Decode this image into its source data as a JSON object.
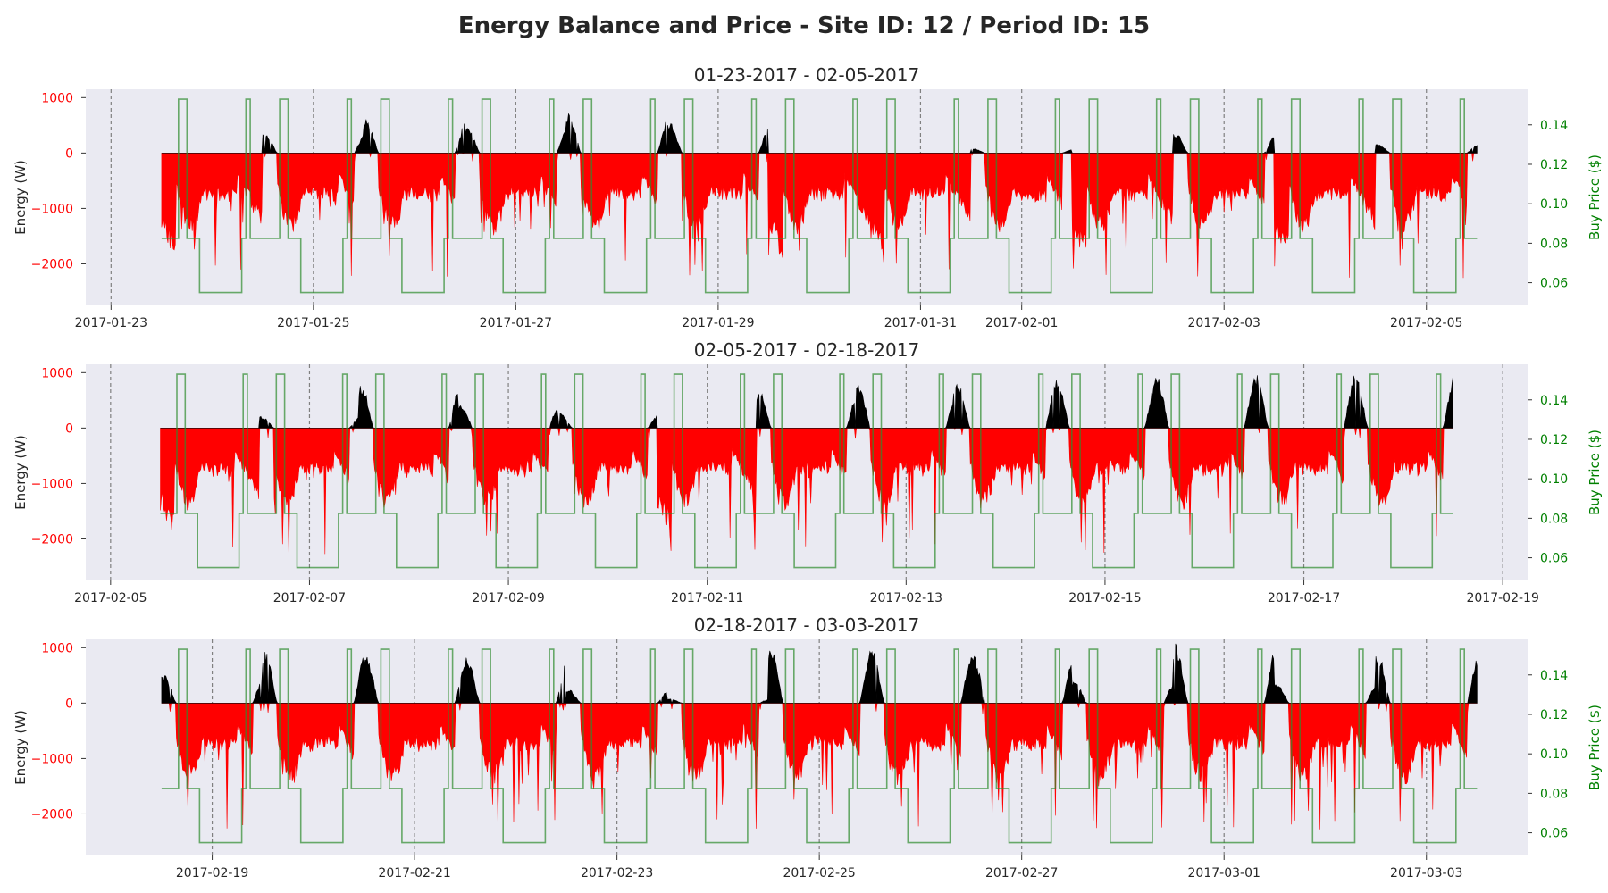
{
  "title": "Energy Balance and Price - Site ID: 12 / Period ID: 15",
  "colors": {
    "background": "#ffffff",
    "plot_bg": "#eaeaf2",
    "energy_neg": "#ff0000",
    "energy_pos": "#000000",
    "price_line": "#2e8b2e",
    "left_tick": "#ff0000",
    "right_tick": "#008000",
    "day_line": "#808080"
  },
  "chart_data": [
    {
      "type": "area",
      "title": "01-23-2017 - 02-05-2017",
      "ylabel": "Energy (W)",
      "y2label": "Buy Price ($)",
      "ylim": [
        -2750,
        1150
      ],
      "y2lim": [
        0.0485,
        0.158
      ],
      "xlim": [
        "2017-01-22 18:00",
        "2017-02-06 00:00"
      ],
      "data_start": "2017-01-23 12:00",
      "data_end": "2017-02-05 12:00",
      "yticks": [
        1000,
        0,
        -1000,
        -2000
      ],
      "y2ticks": [
        0.14,
        0.12,
        0.1,
        0.08,
        0.06
      ],
      "xticks": [
        "2017-01-23",
        "2017-01-25",
        "2017-01-27",
        "2017-01-29",
        "2017-01-31",
        "2017-02-01",
        "2017-02-03",
        "2017-02-05"
      ],
      "day_lines": [
        "2017-01-23",
        "2017-01-25",
        "2017-01-27",
        "2017-01-29",
        "2017-01-31",
        "2017-02-01",
        "2017-02-03",
        "2017-02-05"
      ],
      "series": [
        {
          "name": "Energy (W)",
          "daily_pattern": "solar-midday-surplus, evening/night deficit",
          "typical_min": -2100,
          "typical_max": 730
        },
        {
          "name": "Buy Price ($)",
          "levels": [
            0.055,
            0.0825,
            0.153
          ],
          "pattern": "off-peak night, mid-peak day, on-peak pulses morning/evening"
        }
      ],
      "peaks": [
        0,
        350,
        620,
        480,
        720,
        560,
        0,
        0,
        80,
        0,
        360,
        0,
        160
      ]
    },
    {
      "type": "area",
      "title": "02-05-2017 - 02-18-2017",
      "ylabel": "Energy (W)",
      "y2label": "Buy Price ($)",
      "ylim": [
        -2750,
        1150
      ],
      "y2lim": [
        0.0485,
        0.158
      ],
      "xlim": [
        "2017-02-04 18:00",
        "2017-02-19 06:00"
      ],
      "data_start": "2017-02-05 12:00",
      "data_end": "2017-02-18 12:00",
      "yticks": [
        1000,
        0,
        -1000,
        -2000
      ],
      "y2ticks": [
        0.14,
        0.12,
        0.1,
        0.08,
        0.06
      ],
      "xticks": [
        "2017-02-05",
        "2017-02-07",
        "2017-02-09",
        "2017-02-11",
        "2017-02-13",
        "2017-02-15",
        "2017-02-17",
        "2017-02-19"
      ],
      "day_lines": [
        "2017-02-05",
        "2017-02-07",
        "2017-02-09",
        "2017-02-11",
        "2017-02-13",
        "2017-02-15",
        "2017-02-17",
        "2017-02-19"
      ],
      "series": [
        {
          "name": "Energy (W)",
          "typical_min": -2250,
          "typical_max": 1000
        },
        {
          "name": "Buy Price ($)",
          "levels": [
            0.055,
            0.0825,
            0.153
          ]
        }
      ],
      "peaks": [
        0,
        220,
        820,
        420,
        260,
        0,
        700,
        780,
        850,
        930,
        980,
        1000,
        1000
      ]
    },
    {
      "type": "area",
      "title": "02-18-2017 - 03-03-2017",
      "ylabel": "Energy (W)",
      "y2label": "Buy Price ($)",
      "ylim": [
        -2750,
        1150
      ],
      "y2lim": [
        0.0485,
        0.158
      ],
      "xlim": [
        "2017-02-17 18:00",
        "2017-03-04 00:00"
      ],
      "data_start": "2017-02-18 12:00",
      "data_end": "2017-03-03 12:00",
      "yticks": [
        1000,
        0,
        -1000,
        -2000
      ],
      "y2ticks": [
        0.14,
        0.12,
        0.1,
        0.08,
        0.06
      ],
      "xticks": [
        "2017-02-19",
        "2017-02-21",
        "2017-02-23",
        "2017-02-25",
        "2017-02-27",
        "2017-03-01",
        "2017-03-03"
      ],
      "day_lines": [
        "2017-02-19",
        "2017-02-21",
        "2017-02-23",
        "2017-02-25",
        "2017-02-27",
        "2017-03-01",
        "2017-03-03"
      ],
      "series": [
        {
          "name": "Energy (W)",
          "typical_min": -2000,
          "typical_max": 1080
        },
        {
          "name": "Buy Price ($)",
          "levels": [
            0.055,
            0.0825,
            0.153
          ]
        }
      ],
      "peaks": [
        520,
        950,
        860,
        840,
        250,
        80,
        1020,
        1020,
        870,
        400,
        1080,
        350,
        900
      ]
    }
  ]
}
